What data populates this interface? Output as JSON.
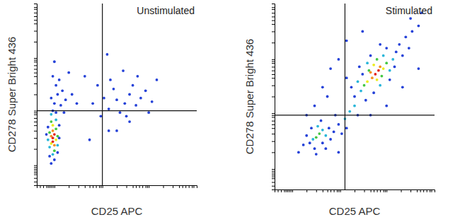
{
  "chart_data": [
    {
      "type": "scatter",
      "annotation": "Unstimulated",
      "xlabel": "CD25 APC",
      "ylabel": "CD278 Super Bright 436",
      "xlim": [
        0,
        100
      ],
      "ylim": [
        0,
        100
      ],
      "xticks": [
        2,
        4,
        6,
        7,
        8,
        9,
        10,
        11,
        20,
        26,
        30,
        33,
        35,
        37,
        39,
        40,
        41,
        50,
        56,
        60,
        62,
        64,
        66,
        68,
        69,
        70,
        79,
        85,
        89,
        91,
        93,
        95,
        97,
        98
      ],
      "yticks": [
        2,
        4,
        6,
        7,
        8,
        9,
        10,
        11,
        20,
        26,
        30,
        33,
        35,
        37,
        39,
        40,
        41,
        50,
        56,
        60,
        62,
        64,
        66,
        68,
        69,
        70,
        79,
        85,
        89,
        91,
        93,
        95,
        97,
        98
      ],
      "tick_labels": false,
      "grid": false,
      "marker": "circle",
      "gates": {
        "x": 41,
        "y": 41
      },
      "x": [
        10,
        10,
        11,
        9,
        10,
        11,
        9,
        12,
        10,
        8,
        12,
        11,
        9,
        13,
        8,
        10,
        12,
        9,
        13,
        7,
        11,
        8,
        14,
        10,
        7,
        13,
        9,
        12,
        6,
        14,
        11,
        13,
        9,
        15,
        12,
        16,
        10,
        18,
        14,
        20,
        17,
        22,
        25,
        11,
        45,
        50,
        55,
        58,
        62,
        48,
        65,
        52,
        60,
        68,
        42,
        56,
        72,
        46,
        63,
        54,
        38,
        70,
        58,
        35,
        30,
        44,
        75,
        50,
        40,
        45,
        33
      ],
      "values": [
        26,
        24,
        28,
        27,
        30,
        22,
        23,
        25,
        33,
        29,
        31,
        19,
        35,
        27,
        21,
        17,
        36,
        39,
        22,
        25,
        14,
        16,
        33,
        41,
        32,
        18,
        12,
        40,
        28,
        26,
        45,
        50,
        48,
        44,
        55,
        52,
        60,
        47,
        58,
        62,
        40,
        50,
        45,
        68,
        42,
        47,
        45,
        50,
        44,
        53,
        48,
        40,
        55,
        52,
        48,
        38,
        46,
        58,
        60,
        63,
        55,
        40,
        35,
        45,
        60,
        72,
        58,
        30,
        38,
        30,
        25
      ],
      "colors": [
        "#e4261d",
        "#e4261d",
        "#e4261d",
        "#f4901f",
        "#f4901f",
        "#f4901f",
        "#ecec1c",
        "#ecec1c",
        "#ecec1c",
        "#44c744",
        "#44c744",
        "#44c744",
        "#44c744",
        "#44c744",
        "#29b6d9",
        "#29b6d9",
        "#29b6d9",
        "#29b6d9",
        "#29b6d9",
        "#29b6d9",
        "#2441d8",
        "#2441d8",
        "#2441d8",
        "#2441d8",
        "#2441d8",
        "#2441d8",
        "#2441d8",
        "#2441d8",
        "#2441d8",
        "#2441d8",
        "#2441d8",
        "#2441d8",
        "#2441d8",
        "#2441d8",
        "#2441d8",
        "#2441d8",
        "#2441d8",
        "#2441d8",
        "#2441d8",
        "#2441d8",
        "#2441d8",
        "#2441d8",
        "#2441d8",
        "#2441d8",
        "#2441d8",
        "#2441d8",
        "#2441d8",
        "#2441d8",
        "#2441d8",
        "#2441d8",
        "#2441d8",
        "#2441d8",
        "#2441d8",
        "#2441d8",
        "#2441d8",
        "#2441d8",
        "#2441d8",
        "#2441d8",
        "#2441d8",
        "#2441d8",
        "#2441d8",
        "#2441d8",
        "#2441d8",
        "#2441d8",
        "#2441d8",
        "#2441d8",
        "#2441d8",
        "#2441d8",
        "#2441d8",
        "#2441d8",
        "#2441d8"
      ]
    },
    {
      "type": "scatter",
      "annotation": "Stimulated",
      "xlabel": "CD25 APC",
      "ylabel": "CD278 Super Bright 436",
      "xlim": [
        0,
        100
      ],
      "ylim": [
        0,
        100
      ],
      "xticks": [
        2,
        4,
        6,
        7,
        8,
        9,
        10,
        11,
        20,
        26,
        30,
        33,
        35,
        37,
        39,
        40,
        41,
        50,
        56,
        60,
        62,
        64,
        66,
        68,
        69,
        70,
        79,
        85,
        89,
        91,
        93,
        95,
        97,
        98
      ],
      "yticks": [
        2,
        4,
        6,
        7,
        8,
        9,
        10,
        11,
        20,
        26,
        30,
        33,
        35,
        37,
        39,
        40,
        41,
        50,
        56,
        60,
        62,
        64,
        66,
        68,
        69,
        70,
        79,
        85,
        89,
        91,
        93,
        95,
        97,
        98
      ],
      "tick_labels": false,
      "grid": false,
      "marker": "circle",
      "gates": {
        "x": 44,
        "y": 40
      },
      "x": [
        28,
        26,
        30,
        24,
        32,
        27,
        22,
        34,
        25,
        30,
        20,
        35,
        29,
        18,
        23,
        37,
        32,
        26,
        40,
        44,
        42,
        47,
        38,
        50,
        45,
        52,
        63,
        65,
        61,
        66,
        60,
        64,
        68,
        58,
        62,
        67,
        56,
        70,
        59,
        64,
        72,
        54,
        58,
        68,
        74,
        52,
        66,
        55,
        76,
        50,
        72,
        60,
        78,
        48,
        62,
        80,
        70,
        82,
        57,
        75,
        86,
        66,
        90,
        53,
        45,
        84,
        30,
        35,
        25,
        40,
        20,
        60,
        70,
        80,
        90,
        45,
        55,
        92,
        15,
        40,
        85,
        33
      ],
      "values": [
        30,
        28,
        32,
        27,
        29,
        34,
        25,
        33,
        22,
        25,
        29,
        27,
        37,
        24,
        33,
        31,
        22,
        19,
        35,
        38,
        30,
        42,
        40,
        45,
        33,
        40,
        62,
        64,
        60,
        66,
        63,
        59,
        65,
        58,
        67,
        61,
        56,
        68,
        64,
        70,
        64,
        53,
        68,
        72,
        70,
        58,
        56,
        62,
        74,
        50,
        59,
        72,
        78,
        55,
        52,
        72,
        76,
        82,
        48,
        66,
        85,
        78,
        88,
        66,
        60,
        76,
        55,
        65,
        45,
        70,
        40,
        40,
        45,
        55,
        65,
        80,
        85,
        95,
        20,
        20,
        92,
        50
      ],
      "colors": [
        "#44c744",
        "#44c744",
        "#29b6d9",
        "#29b6d9",
        "#29b6d9",
        "#29b6d9",
        "#2441d8",
        "#2441d8",
        "#2441d8",
        "#2441d8",
        "#2441d8",
        "#2441d8",
        "#2441d8",
        "#2441d8",
        "#2441d8",
        "#2441d8",
        "#2441d8",
        "#2441d8",
        "#2441d8",
        "#29b6d9",
        "#2441d8",
        "#29b6d9",
        "#2441d8",
        "#29b6d9",
        "#2441d8",
        "#2441d8",
        "#e4261d",
        "#e4261d",
        "#f4901f",
        "#f4901f",
        "#f4901f",
        "#ecec1c",
        "#ecec1c",
        "#ecec1c",
        "#ecec1c",
        "#44c744",
        "#44c744",
        "#44c744",
        "#44c744",
        "#44c744",
        "#29b6d9",
        "#29b6d9",
        "#29b6d9",
        "#29b6d9",
        "#29b6d9",
        "#29b6d9",
        "#29b6d9",
        "#2441d8",
        "#2441d8",
        "#2441d8",
        "#2441d8",
        "#2441d8",
        "#2441d8",
        "#2441d8",
        "#2441d8",
        "#2441d8",
        "#2441d8",
        "#2441d8",
        "#2441d8",
        "#2441d8",
        "#2441d8",
        "#2441d8",
        "#2441d8",
        "#2441d8",
        "#2441d8",
        "#2441d8",
        "#2441d8",
        "#2441d8",
        "#2441d8",
        "#2441d8",
        "#2441d8",
        "#2441d8",
        "#2441d8",
        "#2441d8",
        "#2441d8",
        "#2441d8",
        "#2441d8",
        "#2441d8",
        "#2441d8",
        "#2441d8",
        "#2441d8",
        "#2441d8"
      ]
    }
  ]
}
